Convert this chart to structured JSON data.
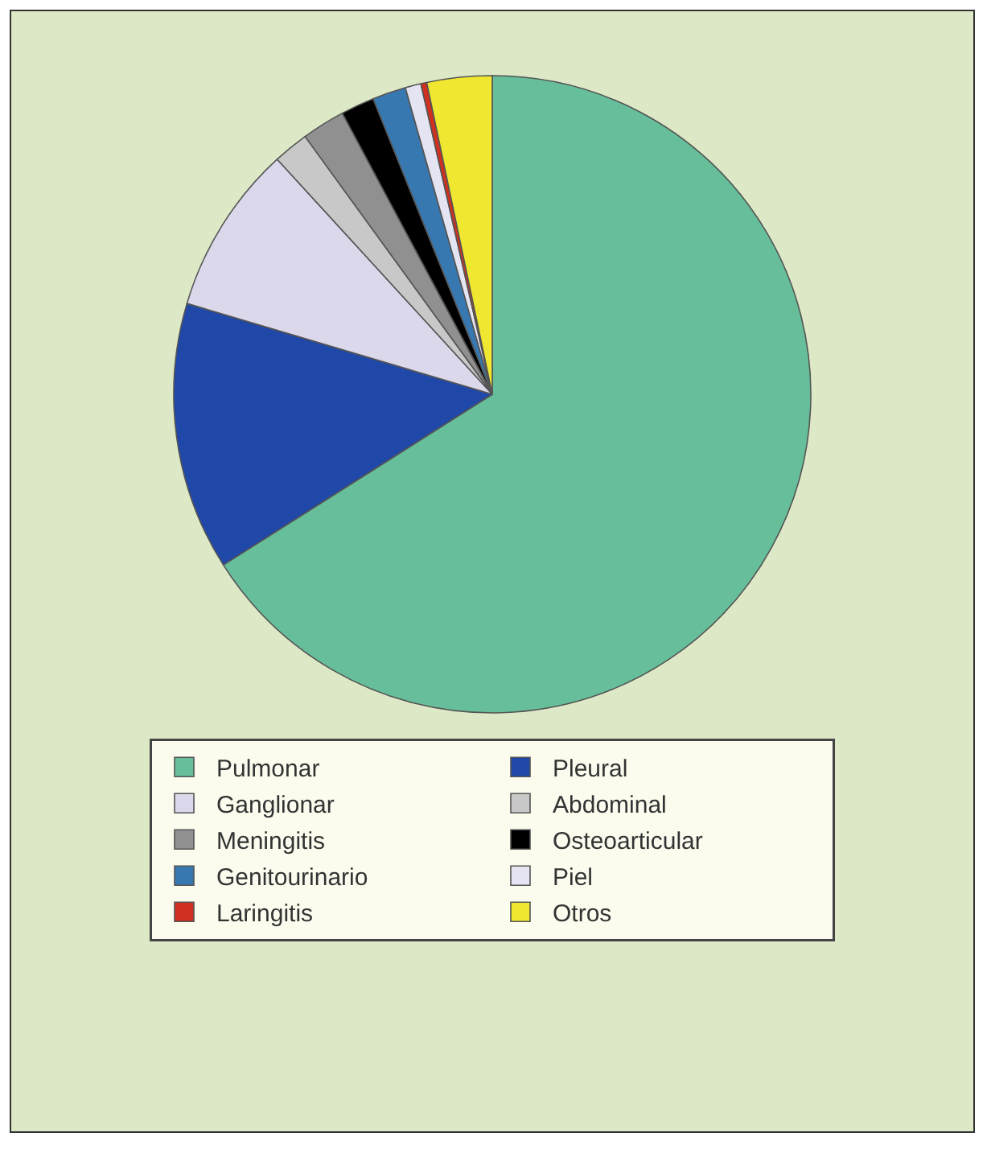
{
  "chart_data": {
    "type": "pie",
    "categories": [
      "Pulmonar",
      "Pleural",
      "Ganglionar",
      "Abdominal",
      "Meningitis",
      "Osteoarticular",
      "Genitourinario",
      "Piel",
      "Laringitis",
      "Otros"
    ],
    "values": [
      66.0,
      13.6,
      8.6,
      1.8,
      2.2,
      1.7,
      1.7,
      0.8,
      0.3,
      3.3
    ],
    "colors": [
      "#66bf9a",
      "#2048a8",
      "#dcd8ec",
      "#c8c8c8",
      "#909090",
      "#000000",
      "#3878b0",
      "#e4e4f2",
      "#d03020",
      "#f0e830"
    ],
    "legend": "bottom"
  }
}
